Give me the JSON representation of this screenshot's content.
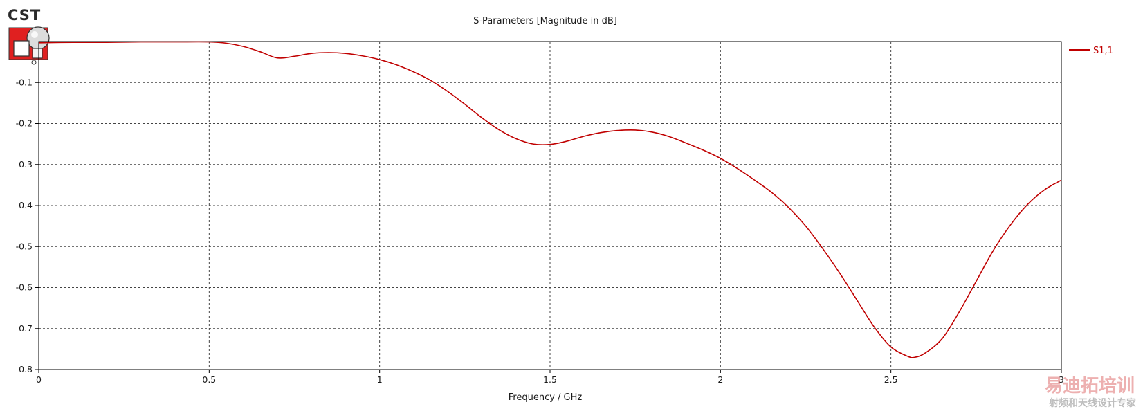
{
  "app": {
    "logo_text": "CST"
  },
  "watermark": {
    "line1": "易迪拓培训",
    "line2": "射频和天线设计专家"
  },
  "colors": {
    "series": "#c00000",
    "grid": "#444444",
    "axis": "#000000",
    "logo_red": "#e02020"
  },
  "chart_data": {
    "type": "line",
    "title": "S-Parameters [Magnitude in dB]",
    "xlabel": "Frequency / GHz",
    "ylabel": "",
    "xlim": [
      0,
      3
    ],
    "ylim": [
      -0.8,
      0.0
    ],
    "grid": true,
    "legend_position": "right",
    "x_ticks": [
      "0",
      "0.5",
      "1",
      "1.5",
      "2",
      "2.5",
      "3"
    ],
    "y_ticks": [
      "-0.1",
      "-0.2",
      "-0.3",
      "-0.4",
      "-0.5",
      "-0.6",
      "-0.7",
      "-0.8"
    ],
    "series": [
      {
        "name": "S1,1",
        "x": [
          0,
          0.1,
          0.2,
          0.3,
          0.4,
          0.5,
          0.55,
          0.6,
          0.65,
          0.7,
          0.75,
          0.8,
          0.85,
          0.9,
          0.95,
          1.0,
          1.05,
          1.1,
          1.15,
          1.2,
          1.25,
          1.3,
          1.35,
          1.4,
          1.45,
          1.5,
          1.55,
          1.6,
          1.65,
          1.7,
          1.75,
          1.8,
          1.85,
          1.9,
          1.95,
          2.0,
          2.05,
          2.1,
          2.15,
          2.2,
          2.25,
          2.3,
          2.35,
          2.4,
          2.45,
          2.5,
          2.55,
          2.57,
          2.6,
          2.65,
          2.7,
          2.75,
          2.8,
          2.85,
          2.9,
          2.95,
          3.0
        ],
        "y": [
          -0.003,
          -0.002,
          -0.002,
          -0.001,
          -0.001,
          -0.001,
          -0.004,
          -0.012,
          -0.025,
          -0.04,
          -0.036,
          -0.029,
          -0.027,
          -0.029,
          -0.035,
          -0.044,
          -0.057,
          -0.074,
          -0.095,
          -0.122,
          -0.153,
          -0.186,
          -0.215,
          -0.237,
          -0.25,
          -0.251,
          -0.243,
          -0.231,
          -0.222,
          -0.217,
          -0.216,
          -0.221,
          -0.232,
          -0.248,
          -0.265,
          -0.285,
          -0.31,
          -0.338,
          -0.368,
          -0.405,
          -0.45,
          -0.505,
          -0.565,
          -0.63,
          -0.695,
          -0.745,
          -0.768,
          -0.77,
          -0.76,
          -0.725,
          -0.66,
          -0.585,
          -0.51,
          -0.448,
          -0.398,
          -0.362,
          -0.338
        ]
      }
    ]
  }
}
